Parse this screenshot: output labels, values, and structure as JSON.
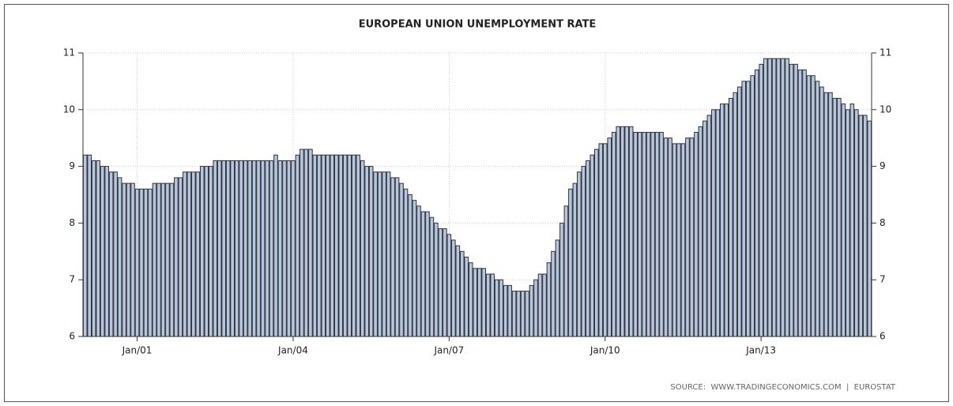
{
  "chart_data": {
    "type": "bar",
    "title": "EUROPEAN UNION UNEMPLOYMENT RATE",
    "source": "SOURCE:  WWW.TRADINGECONOMICS.COM  |  EUROSTAT",
    "categories": [
      null,
      null,
      null,
      null,
      null,
      null,
      null,
      null,
      null,
      null,
      null,
      null,
      "Jan/01",
      null,
      null,
      null,
      null,
      null,
      null,
      null,
      null,
      null,
      null,
      null,
      null,
      null,
      null,
      null,
      null,
      null,
      null,
      null,
      null,
      null,
      null,
      null,
      null,
      null,
      null,
      null,
      null,
      null,
      null,
      null,
      null,
      null,
      null,
      null,
      "Jan/04",
      null,
      null,
      null,
      null,
      null,
      null,
      null,
      null,
      null,
      null,
      null,
      null,
      null,
      null,
      null,
      null,
      null,
      null,
      null,
      null,
      null,
      null,
      null,
      null,
      null,
      null,
      null,
      null,
      null,
      null,
      null,
      null,
      null,
      null,
      null,
      "Jan/07",
      null,
      null,
      null,
      null,
      null,
      null,
      null,
      null,
      null,
      null,
      null,
      null,
      null,
      null,
      null,
      null,
      null,
      null,
      null,
      null,
      null,
      null,
      null,
      null,
      null,
      null,
      null,
      null,
      null,
      null,
      null,
      null,
      null,
      null,
      null,
      "Jan/10",
      null,
      null,
      null,
      null,
      null,
      null,
      null,
      null,
      null,
      null,
      null,
      null,
      null,
      null,
      null,
      null,
      null,
      null,
      null,
      null,
      null,
      null,
      null,
      null,
      null,
      null,
      null,
      null,
      null,
      null,
      null,
      null,
      null,
      null,
      null,
      "Jan/13",
      null,
      null,
      null,
      null,
      null,
      null,
      null,
      null,
      null,
      null,
      null,
      null,
      null,
      null,
      null,
      null,
      null,
      null,
      null,
      null,
      null,
      null,
      null,
      null,
      null
    ],
    "values": [
      9.2,
      9.2,
      9.1,
      9.1,
      9.0,
      9.0,
      8.9,
      8.9,
      8.8,
      8.7,
      8.7,
      8.7,
      8.6,
      8.6,
      8.6,
      8.6,
      8.7,
      8.7,
      8.7,
      8.7,
      8.7,
      8.8,
      8.8,
      8.9,
      8.9,
      8.9,
      8.9,
      9.0,
      9.0,
      9.0,
      9.1,
      9.1,
      9.1,
      9.1,
      9.1,
      9.1,
      9.1,
      9.1,
      9.1,
      9.1,
      9.1,
      9.1,
      9.1,
      9.1,
      9.2,
      9.1,
      9.1,
      9.1,
      9.1,
      9.2,
      9.3,
      9.3,
      9.3,
      9.2,
      9.2,
      9.2,
      9.2,
      9.2,
      9.2,
      9.2,
      9.2,
      9.2,
      9.2,
      9.2,
      9.1,
      9.0,
      9.0,
      8.9,
      8.9,
      8.9,
      8.9,
      8.8,
      8.8,
      8.7,
      8.6,
      8.5,
      8.4,
      8.3,
      8.2,
      8.2,
      8.1,
      8.0,
      7.9,
      7.9,
      7.8,
      7.7,
      7.6,
      7.5,
      7.4,
      7.3,
      7.2,
      7.2,
      7.2,
      7.1,
      7.1,
      7.0,
      7.0,
      6.9,
      6.9,
      6.8,
      6.8,
      6.8,
      6.8,
      6.9,
      7.0,
      7.1,
      7.1,
      7.3,
      7.5,
      7.7,
      8.0,
      8.3,
      8.6,
      8.7,
      8.9,
      9.0,
      9.1,
      9.2,
      9.3,
      9.4,
      9.4,
      9.5,
      9.6,
      9.7,
      9.7,
      9.7,
      9.7,
      9.6,
      9.6,
      9.6,
      9.6,
      9.6,
      9.6,
      9.6,
      9.5,
      9.5,
      9.4,
      9.4,
      9.4,
      9.5,
      9.5,
      9.6,
      9.7,
      9.8,
      9.9,
      10.0,
      10.0,
      10.1,
      10.1,
      10.2,
      10.3,
      10.4,
      10.5,
      10.5,
      10.6,
      10.7,
      10.8,
      10.9,
      10.9,
      10.9,
      10.9,
      10.9,
      10.9,
      10.8,
      10.8,
      10.7,
      10.7,
      10.6,
      10.6,
      10.5,
      10.4,
      10.3,
      10.3,
      10.2,
      10.2,
      10.1,
      10.0,
      10.1,
      10.0,
      9.9,
      9.9,
      9.8
    ],
    "color": "#b4c6e0",
    "edge_color": "#333333",
    "ylim": [
      6,
      11
    ],
    "yticks": [
      6,
      7,
      8,
      9,
      10,
      11
    ],
    "grid": true
  }
}
